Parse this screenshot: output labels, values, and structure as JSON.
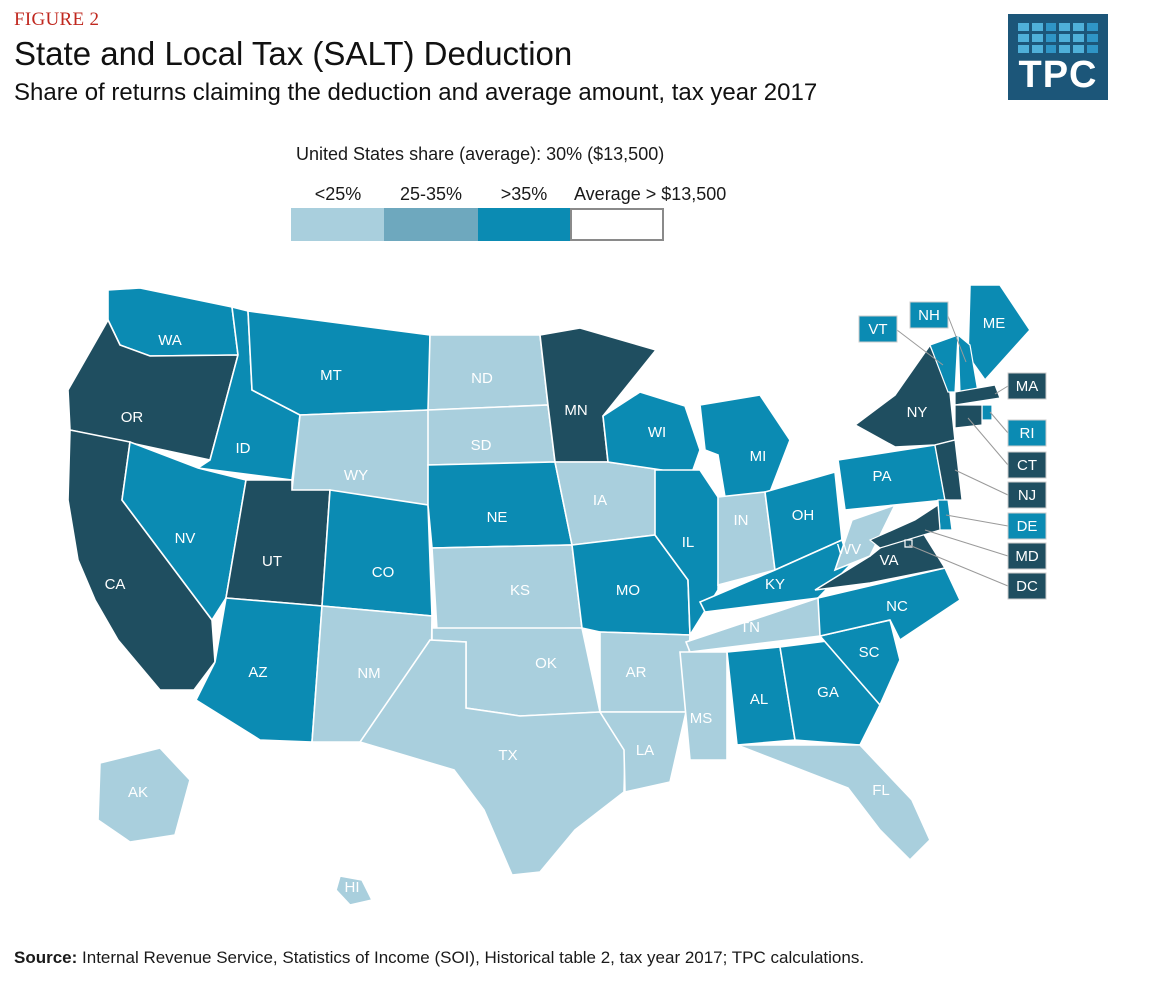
{
  "header": {
    "figure_label": "FIGURE 2",
    "title": "State and Local Tax (SALT) Deduction",
    "subtitle": "Share of returns claiming the deduction and average amount, tax year 2017",
    "logo_text": "TPC"
  },
  "legend": {
    "caption": "United States share (average): 30% ($13,500)",
    "items": [
      {
        "label": "<25%",
        "color": "#a9cfdd"
      },
      {
        "label": "25-35%",
        "color": "#6ea8be"
      },
      {
        "label": ">35%",
        "color": "#0b8bb3"
      },
      {
        "label": "Average > $13,500",
        "color": "#ffffff"
      }
    ],
    "dark_color": "#1f4e60"
  },
  "map": {
    "states": [
      {
        "abbr": "WA",
        "cls": "high"
      },
      {
        "abbr": "OR",
        "cls": "dark"
      },
      {
        "abbr": "CA",
        "cls": "dark"
      },
      {
        "abbr": "ID",
        "cls": "high"
      },
      {
        "abbr": "NV",
        "cls": "high"
      },
      {
        "abbr": "MT",
        "cls": "high"
      },
      {
        "abbr": "WY",
        "cls": "low"
      },
      {
        "abbr": "UT",
        "cls": "dark"
      },
      {
        "abbr": "AZ",
        "cls": "high"
      },
      {
        "abbr": "CO",
        "cls": "high"
      },
      {
        "abbr": "NM",
        "cls": "low"
      },
      {
        "abbr": "ND",
        "cls": "low"
      },
      {
        "abbr": "SD",
        "cls": "low"
      },
      {
        "abbr": "NE",
        "cls": "high"
      },
      {
        "abbr": "KS",
        "cls": "low"
      },
      {
        "abbr": "OK",
        "cls": "low"
      },
      {
        "abbr": "TX",
        "cls": "low"
      },
      {
        "abbr": "MN",
        "cls": "dark"
      },
      {
        "abbr": "IA",
        "cls": "low"
      },
      {
        "abbr": "MO",
        "cls": "high"
      },
      {
        "abbr": "AR",
        "cls": "low"
      },
      {
        "abbr": "LA",
        "cls": "low"
      },
      {
        "abbr": "WI",
        "cls": "high"
      },
      {
        "abbr": "IL",
        "cls": "high"
      },
      {
        "abbr": "MI",
        "cls": "high"
      },
      {
        "abbr": "IN",
        "cls": "low"
      },
      {
        "abbr": "OH",
        "cls": "high"
      },
      {
        "abbr": "KY",
        "cls": "high"
      },
      {
        "abbr": "TN",
        "cls": "low"
      },
      {
        "abbr": "MS",
        "cls": "low"
      },
      {
        "abbr": "AL",
        "cls": "high"
      },
      {
        "abbr": "GA",
        "cls": "high"
      },
      {
        "abbr": "FL",
        "cls": "low"
      },
      {
        "abbr": "SC",
        "cls": "high"
      },
      {
        "abbr": "NC",
        "cls": "high"
      },
      {
        "abbr": "VA",
        "cls": "dark"
      },
      {
        "abbr": "WV",
        "cls": "low"
      },
      {
        "abbr": "PA",
        "cls": "high"
      },
      {
        "abbr": "NY",
        "cls": "dark"
      },
      {
        "abbr": "ME",
        "cls": "high"
      },
      {
        "abbr": "AK",
        "cls": "low"
      },
      {
        "abbr": "HI",
        "cls": "low"
      },
      {
        "abbr": "VT",
        "cls": "high"
      },
      {
        "abbr": "NH",
        "cls": "high"
      },
      {
        "abbr": "MA",
        "cls": "dark"
      },
      {
        "abbr": "RI",
        "cls": "high"
      },
      {
        "abbr": "CT",
        "cls": "dark"
      },
      {
        "abbr": "NJ",
        "cls": "dark"
      },
      {
        "abbr": "DE",
        "cls": "high"
      },
      {
        "abbr": "MD",
        "cls": "dark"
      },
      {
        "abbr": "DC",
        "cls": "dark"
      }
    ]
  },
  "footer": {
    "source_label": "Source:",
    "source_text": " Internal Revenue Service, Statistics of Income (SOI), Historical table 2, tax year 2017; TPC calculations."
  }
}
